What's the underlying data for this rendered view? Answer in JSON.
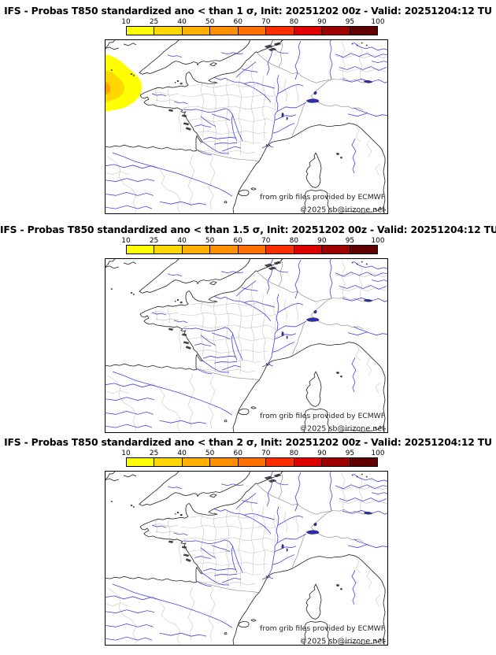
{
  "product": {
    "model": "IFS",
    "parameter": "Probas T850",
    "init": "20251202 00z",
    "valid": "20251204:12 TU"
  },
  "panels": [
    {
      "title": "IFS - Probas T850  standardized ano < than 1 σ, Init: 20251202 00z - Valid: 20251204:12 TU",
      "threshold_sigma": "1",
      "has_anomaly_blob": true
    },
    {
      "title": "IFS - Probas T850  standardized ano < than 1.5 σ, Init: 20251202 00z - Valid: 20251204:12 TU",
      "threshold_sigma": "1.5",
      "has_anomaly_blob": false
    },
    {
      "title": "IFS - Probas T850  standardized ano < than 2 σ, Init: 20251202 00z - Valid: 20251204:12 TU",
      "threshold_sigma": "2",
      "has_anomaly_blob": false
    }
  ],
  "colorbar": {
    "ticks": [
      "10",
      "25",
      "40",
      "50",
      "60",
      "70",
      "80",
      "90",
      "95",
      "100"
    ],
    "colors": [
      "#ffff00",
      "#ffd700",
      "#ffb000",
      "#ff9100",
      "#ff7000",
      "#ff2d00",
      "#df0000",
      "#9f0000",
      "#600000"
    ]
  },
  "map": {
    "credit_line1": "from grib files provided by ECMWF",
    "credit_line2": "©2025 sb@irizone.net",
    "anomaly_region": "probability maximum 40-50% in Atlantic west of Brittany (panel 1 only)",
    "colors": {
      "coast": "#2a2a2a",
      "country_border": "#999999",
      "department_border": "#c0c0c0",
      "river": "#4444dd",
      "lake": "#2d2db0",
      "blob_outer": "#ffff00",
      "blob_mid": "#ffd700",
      "blob_core": "#ffa000"
    }
  }
}
